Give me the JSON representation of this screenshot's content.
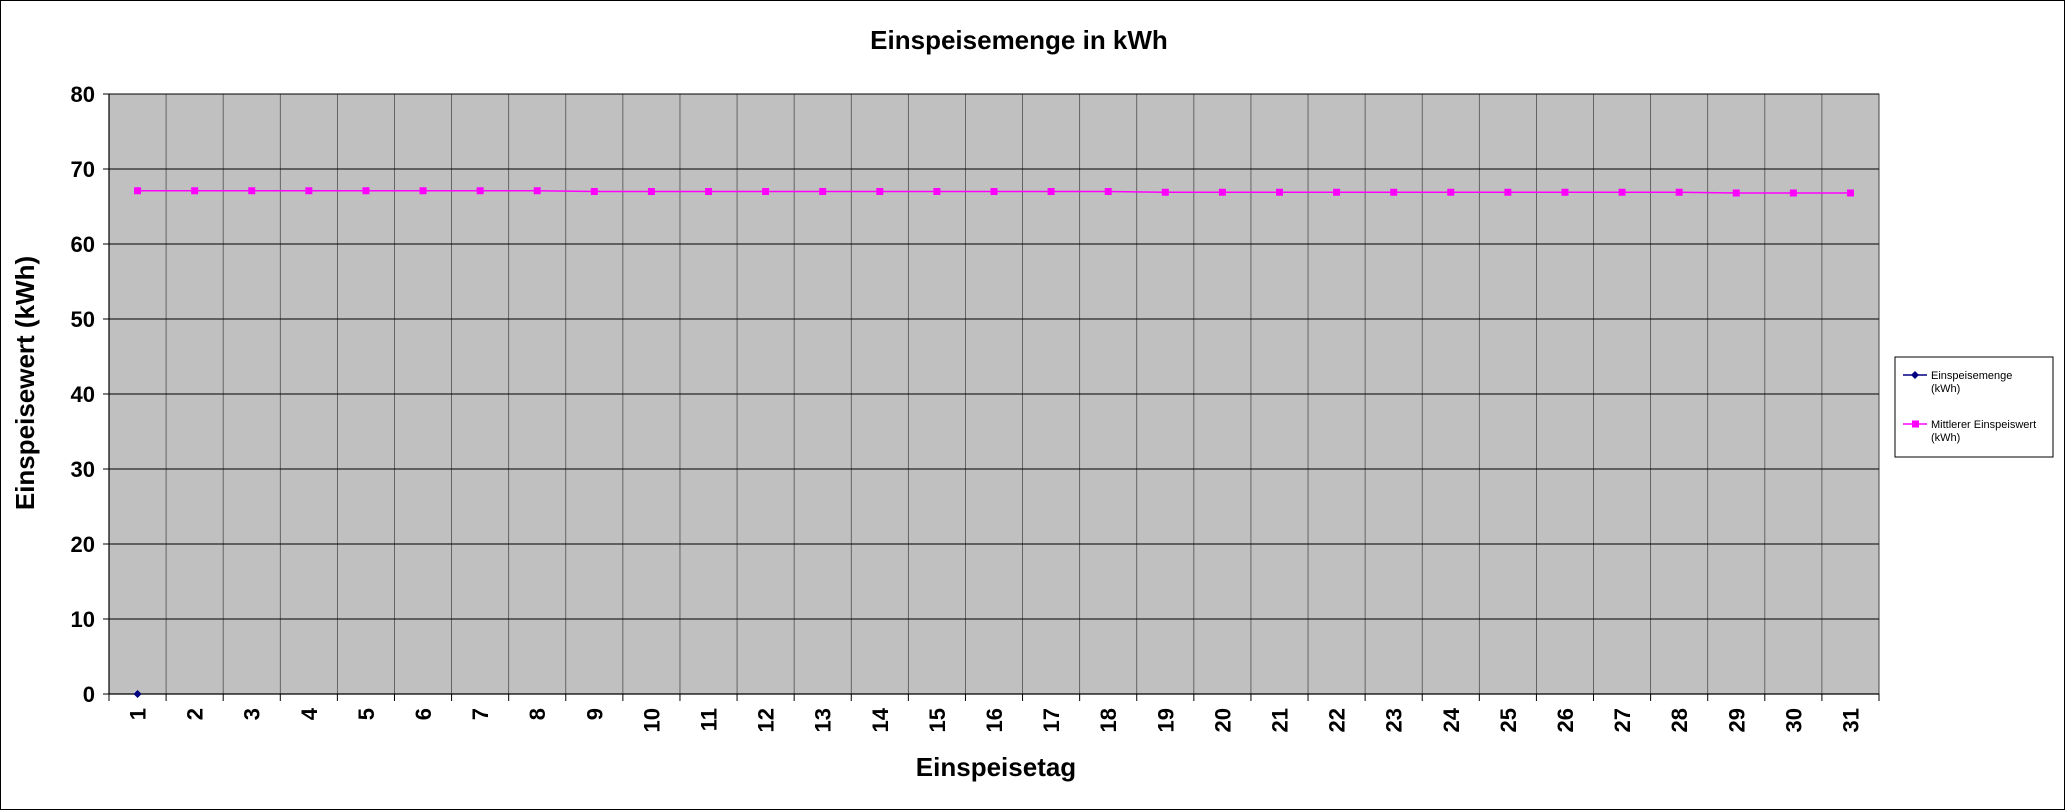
{
  "chart_data": {
    "type": "line",
    "title": "Einspeisemenge in kWh",
    "xlabel": "Einspeisetag",
    "ylabel": "Einspeisewert  (kWh)",
    "ylim": [
      0,
      80
    ],
    "yticks": [
      "0",
      "10",
      "20",
      "30",
      "40",
      "50",
      "60",
      "70",
      "80"
    ],
    "categories": [
      "1",
      "2",
      "3",
      "4",
      "5",
      "6",
      "7",
      "8",
      "9",
      "10",
      "11",
      "12",
      "13",
      "14",
      "15",
      "16",
      "17",
      "18",
      "19",
      "20",
      "21",
      "22",
      "23",
      "24",
      "25",
      "26",
      "27",
      "28",
      "29",
      "30",
      "31"
    ],
    "grid": true,
    "legend_position": "right",
    "plot_background": "#C0C0C0",
    "series": [
      {
        "name_lines": [
          "Einspeisemenge",
          "(kWh)"
        ],
        "color": "#000080",
        "marker": "diamond",
        "values": [
          0,
          null,
          null,
          null,
          null,
          null,
          null,
          null,
          null,
          null,
          null,
          null,
          null,
          null,
          null,
          null,
          null,
          null,
          null,
          null,
          null,
          null,
          null,
          null,
          null,
          null,
          null,
          null,
          null,
          null,
          null
        ]
      },
      {
        "name_lines": [
          "Mittlerer Einspeiswert",
          "(kWh)"
        ],
        "color": "#FF00FF",
        "marker": "square",
        "values": [
          67.1,
          67.1,
          67.1,
          67.1,
          67.1,
          67.1,
          67.1,
          67.1,
          67.0,
          67.0,
          67.0,
          67.0,
          67.0,
          67.0,
          67.0,
          67.0,
          67.0,
          67.0,
          66.9,
          66.9,
          66.9,
          66.9,
          66.9,
          66.9,
          66.9,
          66.9,
          66.9,
          66.9,
          66.8,
          66.8,
          66.8
        ]
      }
    ]
  }
}
